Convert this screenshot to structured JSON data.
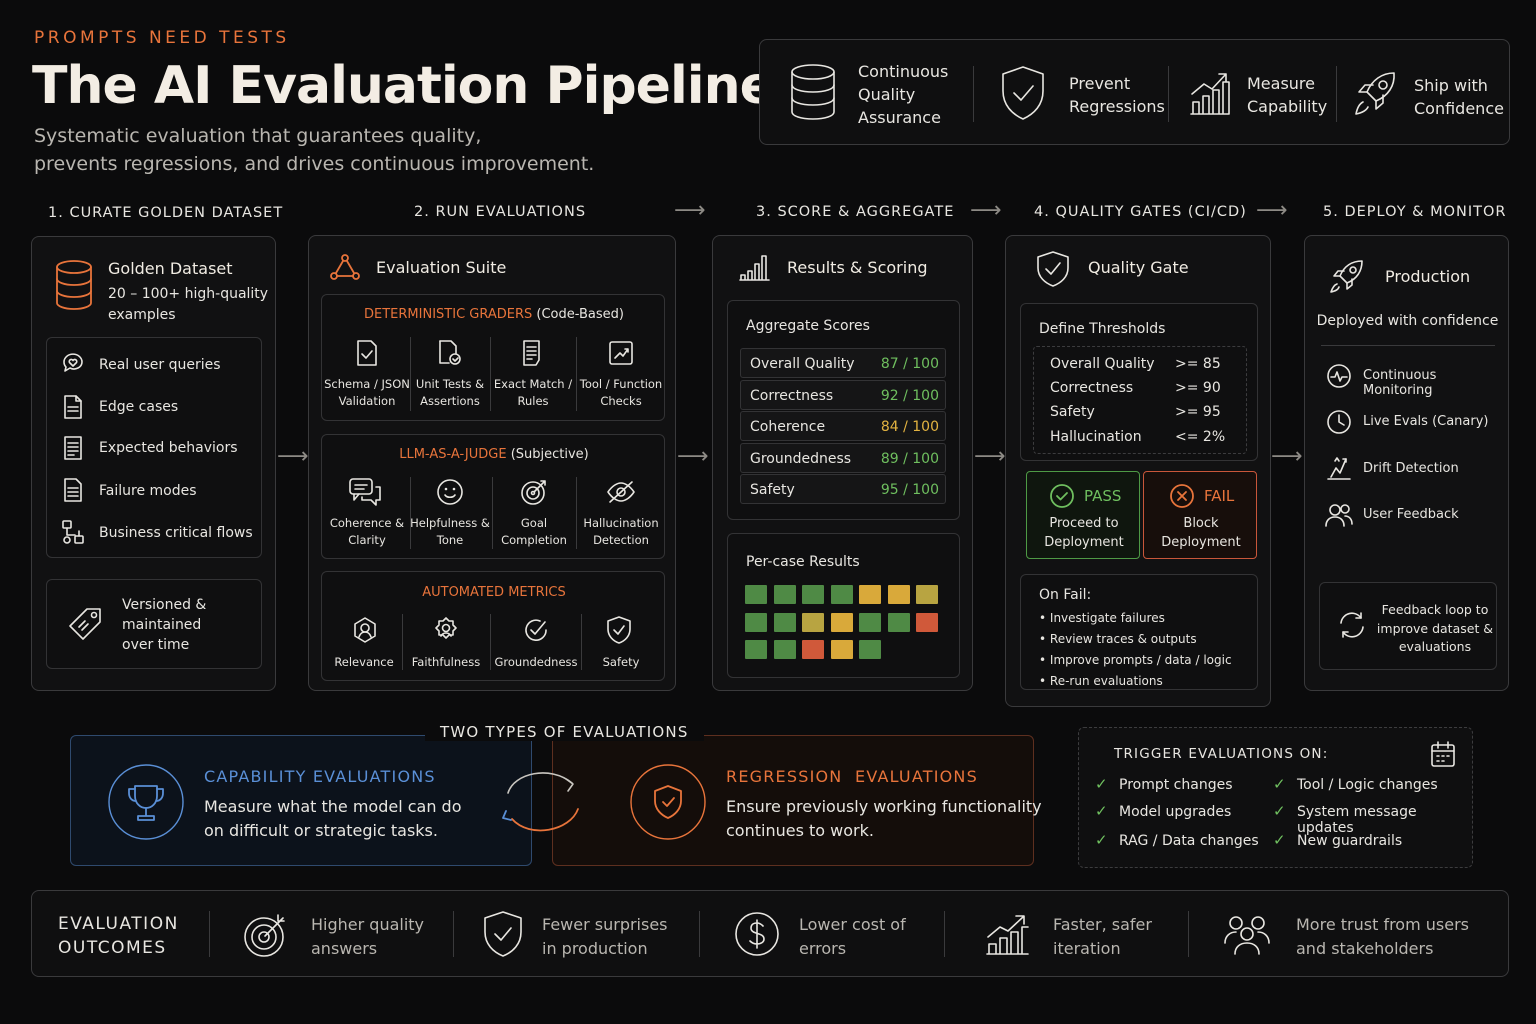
{
  "header": {
    "eyebrow": "PROMPTS NEED TESTS",
    "title": "The AI Evaluation Pipeline",
    "subtitle_line1": "Systematic evaluation that guarantees quality,",
    "subtitle_line2": "prevents regressions, and drives continuous improvement."
  },
  "benefits": [
    {
      "icon": "database-icon",
      "line1": "Continuous",
      "line2": "Quality",
      "line3": "Assurance"
    },
    {
      "icon": "shield-check-icon",
      "line1": "Prevent",
      "line2": "Regressions"
    },
    {
      "icon": "bar-chart-icon",
      "line1": "Measure",
      "line2": "Capability"
    },
    {
      "icon": "rocket-icon",
      "line1": "Ship with",
      "line2": "Confidence"
    }
  ],
  "steps": {
    "s1": "1. CURATE GOLDEN DATASET",
    "s2": "2. RUN EVALUATIONS",
    "s3": "3. SCORE & AGGREGATE",
    "s4": "4. QUALITY GATES (CI/CD)",
    "s5": "5. DEPLOY & MONITOR"
  },
  "dataset": {
    "title": "Golden Dataset",
    "desc1": "20 – 100+ high-quality",
    "desc2": "examples",
    "items": [
      "Real user queries",
      "Edge cases",
      "Expected behaviors",
      "Failure modes",
      "Business critical flows"
    ],
    "footer1": "Versioned &",
    "footer2": "maintained",
    "footer3": "over time"
  },
  "suite": {
    "title": "Evaluation Suite",
    "det_title": "DETERMINISTIC GRADERS",
    "det_sub": "(Code-Based)",
    "det_items": [
      {
        "l1": "Schema / JSON",
        "l2": "Validation"
      },
      {
        "l1": "Unit Tests &",
        "l2": "Assertions"
      },
      {
        "l1": "Exact Match /",
        "l2": "Rules"
      },
      {
        "l1": "Tool / Function",
        "l2": "Checks"
      }
    ],
    "llm_title": "LLM-AS-A-JUDGE",
    "llm_sub": "(Subjective)",
    "llm_items": [
      {
        "l1": "Coherence &",
        "l2": "Clarity"
      },
      {
        "l1": "Helpfulness &",
        "l2": "Tone"
      },
      {
        "l1": "Goal",
        "l2": "Completion"
      },
      {
        "l1": "Hallucination",
        "l2": "Detection"
      }
    ],
    "auto_title": "AUTOMATED METRICS",
    "auto_items": [
      "Relevance",
      "Faithfulness",
      "Groundedness",
      "Safety"
    ]
  },
  "scoring": {
    "title": "Results & Scoring",
    "agg_title": "Aggregate Scores",
    "rows": [
      {
        "label": "Overall Quality",
        "value": "87 / 100",
        "status": "green"
      },
      {
        "label": "Correctness",
        "value": "92 / 100",
        "status": "green"
      },
      {
        "label": "Coherence",
        "value": "84 / 100",
        "status": "yellow"
      },
      {
        "label": "Groundedness",
        "value": "89 / 100",
        "status": "green"
      },
      {
        "label": "Safety",
        "value": "95 / 100",
        "status": "green"
      }
    ],
    "per_case_title": "Per-case Results",
    "per_case_rows": [
      [
        "g",
        "g",
        "g",
        "g",
        "y",
        "y",
        "o"
      ],
      [
        "g",
        "g",
        "o",
        "y",
        "g",
        "g",
        "r"
      ],
      [
        "g",
        "g",
        "r",
        "y",
        "g"
      ]
    ],
    "colors": {
      "g": "#4f8a45",
      "y": "#d9a93a",
      "o": "#b8a441",
      "r": "#d0593a"
    }
  },
  "gate": {
    "title": "Quality Gate",
    "thresholds_title": "Define Thresholds",
    "thresholds": [
      {
        "label": "Overall Quality",
        "op": ">= 85"
      },
      {
        "label": "Correctness",
        "op": ">= 90"
      },
      {
        "label": "Safety",
        "op": ">= 95"
      },
      {
        "label": "Hallucination",
        "op": "<= 2%"
      }
    ],
    "pass_label": "PASS",
    "pass_l1": "Proceed to",
    "pass_l2": "Deployment",
    "fail_label": "FAIL",
    "fail_l1": "Block",
    "fail_l2": "Deployment",
    "onfail_title": "On Fail:",
    "onfail_items": [
      "Investigate failures",
      "Review traces & outputs",
      "Improve prompts / data / logic",
      "Re-run evaluations"
    ]
  },
  "deploy": {
    "title": "Production",
    "subtitle": "Deployed with confidence",
    "items": [
      "Continuous Monitoring",
      "Live Evals (Canary)",
      "Drift Detection",
      "User Feedback"
    ],
    "loop1": "Feedback loop to",
    "loop2": "improve dataset &",
    "loop3": "evaluations"
  },
  "types": {
    "heading": "TWO TYPES OF EVALUATIONS",
    "cap_title": "CAPABILITY EVALUATIONS",
    "cap_l1": "Measure what the model can do",
    "cap_l2": "on difficult or strategic tasks.",
    "reg_title": "REGRESSION  EVALUATIONS",
    "reg_l1": "Ensure previously working functionality",
    "reg_l2": "continues to work."
  },
  "triggers": {
    "title": "TRIGGER EVALUATIONS ON:",
    "items": [
      "Prompt changes",
      "Tool / Logic changes",
      "Model upgrades",
      "System message updates",
      "RAG / Data changes",
      "New guardrails"
    ]
  },
  "outcomes": {
    "label1": "EVALUATION",
    "label2": "OUTCOMES",
    "items": [
      {
        "icon": "target-icon",
        "l1": "Higher quality",
        "l2": "answers"
      },
      {
        "icon": "shield-check-icon",
        "l1": "Fewer surprises",
        "l2": "in production"
      },
      {
        "icon": "dollar-icon",
        "l1": "Lower cost of",
        "l2": "errors"
      },
      {
        "icon": "growth-chart-icon",
        "l1": "Faster, safer",
        "l2": "iteration"
      },
      {
        "icon": "users-icon",
        "l1": "More trust from users",
        "l2": "and stakeholders"
      }
    ]
  },
  "accent": {
    "orange": "#e8743b",
    "blue": "#5a8fd6",
    "green": "#6fbf5f",
    "red": "#d0593a"
  }
}
